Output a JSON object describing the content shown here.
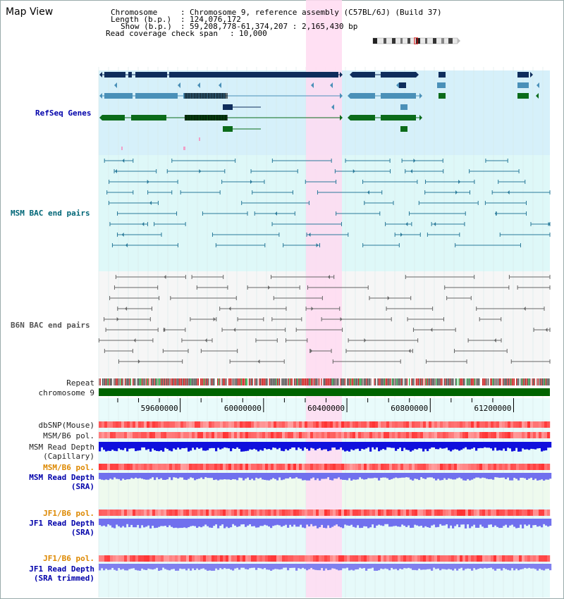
{
  "app": {
    "title": "Map View"
  },
  "header": {
    "chromosome_key": "Chromosome",
    "chromosome_value": "Chromosome 9, reference assembly (C57BL/6J) (Build 37)",
    "length_key": "Length (b.p.)",
    "length_value": "124,076,172",
    "show_key": "Show (b.p.)",
    "show_value": "59,208,778-61,374,207 : 2,165,430 bp",
    "coverage_key": "Read coverage check span",
    "coverage_value": "10,000"
  },
  "tracks": {
    "refseq": "RefSeq Genes",
    "msm_bac": "MSM BAC end pairs",
    "b6n_bac": "B6N BAC end pairs",
    "repeat": "Repeat",
    "chromosome": "chromosome 9",
    "dbsnp": "dbSNP(Mouse)",
    "msm_b6_pol_1": "MSM/B6 pol.",
    "msm_depth_cap_1": "MSM Read Depth",
    "msm_depth_cap_2": "(Capillary)",
    "msm_b6_pol_2": "MSM/B6 pol.",
    "msm_depth_sra_1": "MSM Read Depth",
    "msm_depth_sra_2": "(SRA)",
    "jf1_b6_pol_1": "JF1/B6 pol.",
    "jf1_depth_sra_1": "JF1 Read Depth",
    "jf1_depth_sra_2": "(SRA)",
    "jf1_b6_pol_2": "JF1/B6 pol.",
    "jf1_depth_trim_1": "JF1 Read Depth",
    "jf1_depth_trim_2": "(SRA trimmed)"
  },
  "ruler": {
    "ticks": [
      {
        "label": "59600000",
        "pos": 59600000
      },
      {
        "label": "60000000",
        "pos": 60000000
      },
      {
        "label": "60400000",
        "pos": 60400000
      },
      {
        "label": "60800000",
        "pos": 60800000
      },
      {
        "label": "61200000",
        "pos": 61200000
      }
    ]
  },
  "colors": {
    "highlight": "#ffdaf1",
    "refseq_bg": "#d6f0fa",
    "msm_bg": "#def8f8",
    "b6n_bg": "#f6f6f6",
    "gene_navy": "#0f2d5c",
    "gene_steel": "#4a90b8",
    "gene_green": "#0b6b1a",
    "chromosome_bar": "#006400"
  }
}
